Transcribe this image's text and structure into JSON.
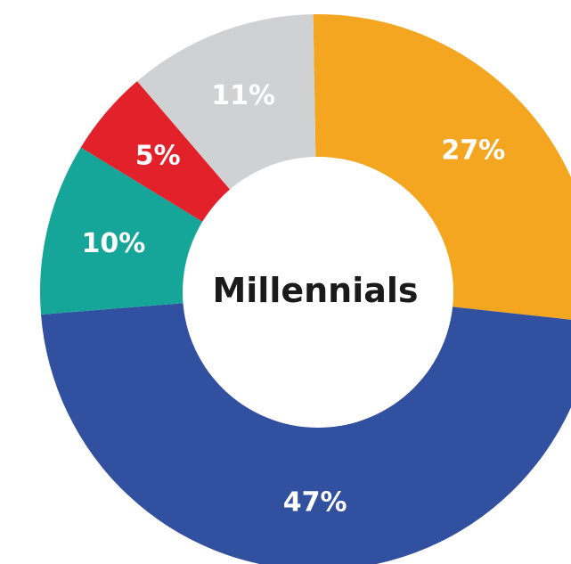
{
  "chart_data": {
    "type": "pie",
    "center_label": "Millennials",
    "slices": [
      {
        "label": "27%",
        "value": 27,
        "color": "#F4A620"
      },
      {
        "label": "47%",
        "value": 47,
        "color": "#3250A0"
      },
      {
        "label": "10%",
        "value": 10,
        "color": "#15A699"
      },
      {
        "label": "5%",
        "value": 5,
        "color": "#E2212B"
      },
      {
        "label": "11%",
        "value": 11,
        "color": "#D0D1D3"
      }
    ]
  }
}
